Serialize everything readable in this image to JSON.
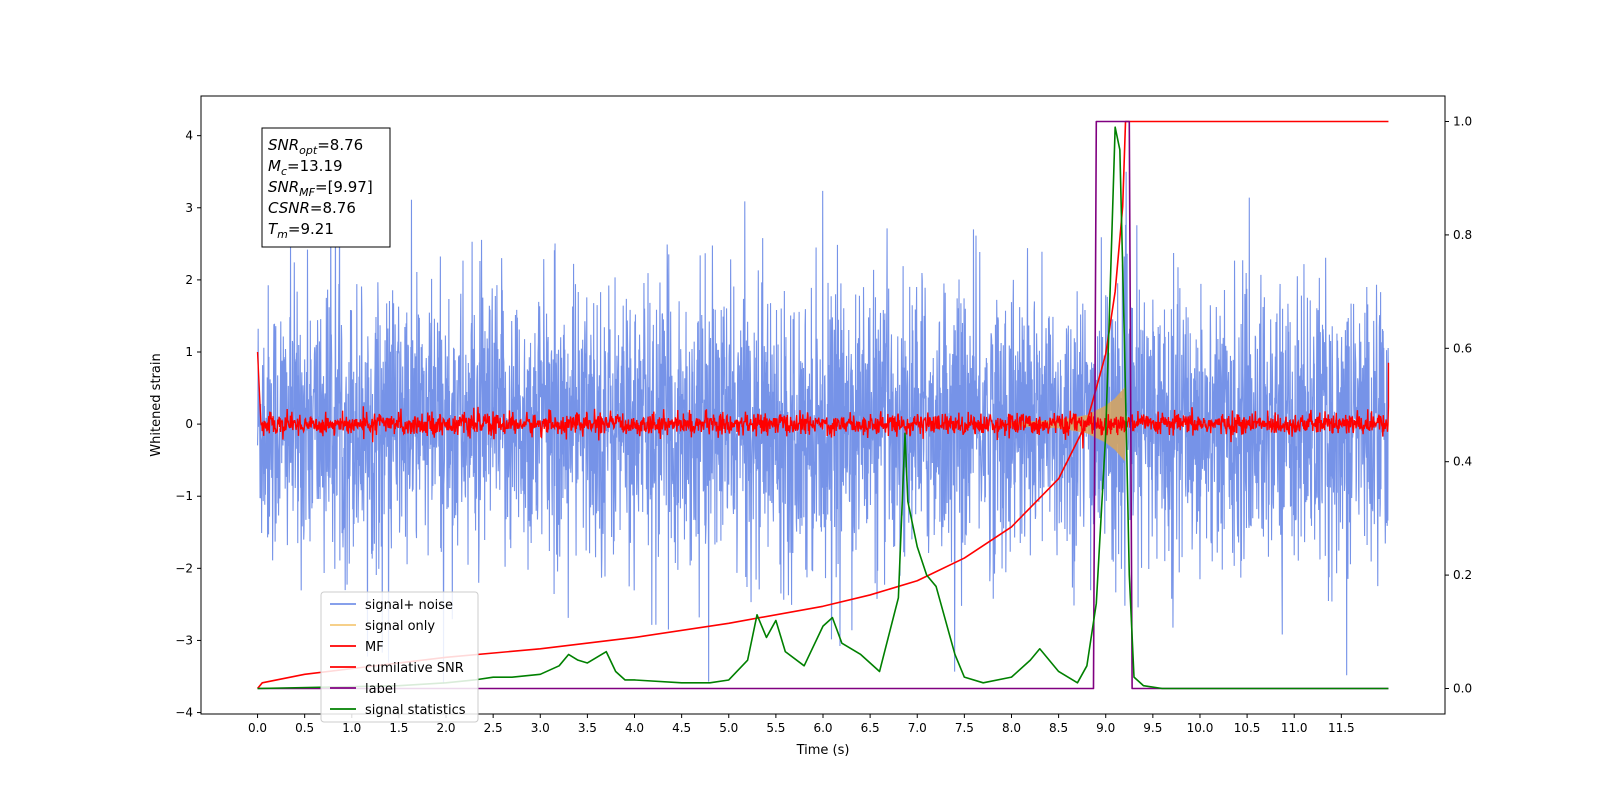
{
  "chart_data": {
    "type": "line",
    "xlabel": "Time (s)",
    "ylabel": "Whitened strain",
    "xlim": [
      -0.6,
      12.6
    ],
    "ylim": [
      -4.02,
      4.55
    ],
    "y2lim": [
      -0.045,
      1.045
    ],
    "x_ticks": [
      0.0,
      0.5,
      1.0,
      1.5,
      2.0,
      2.5,
      3.0,
      3.5,
      4.0,
      4.5,
      5.0,
      5.5,
      6.0,
      6.5,
      7.0,
      7.5,
      8.0,
      8.5,
      9.0,
      9.5,
      10.0,
      10.5,
      11.0,
      11.5
    ],
    "x_tick_labels": [
      "0.0",
      "0.5",
      "1.0",
      "1.5",
      "2.0",
      "2.5",
      "3.0",
      "3.5",
      "4.0",
      "4.5",
      "5.0",
      "5.5",
      "6.0",
      "6.5",
      "7.0",
      "7.5",
      "8.0",
      "8.5",
      "9.0",
      "9.5",
      "10.0",
      "10.5",
      "11.0",
      "11.5"
    ],
    "y_ticks": [
      -4,
      -3,
      -2,
      -1,
      0,
      1,
      2,
      3,
      4
    ],
    "y_tick_labels": [
      "−4",
      "−3",
      "−2",
      "−1",
      "0",
      "1",
      "2",
      "3",
      "4"
    ],
    "y2_ticks": [
      0.0,
      0.2,
      0.4,
      0.6,
      0.8,
      1.0
    ],
    "y2_tick_labels": [
      "0.0",
      "0.2",
      "0.4",
      "0.6",
      "0.8",
      "1.0"
    ],
    "stats_box": [
      {
        "base": "SNR",
        "sub": "opt",
        "text": "=8.76"
      },
      {
        "base": "M",
        "sub": "c",
        "text": "=13.19"
      },
      {
        "base": "SNR",
        "sub": "MF",
        "text": "=[9.97]"
      },
      {
        "base": "CSNR",
        "sub": "",
        "text": "=8.76"
      },
      {
        "base": "T",
        "sub": "m",
        "text": "=9.21"
      }
    ],
    "legend_position": "lower-left",
    "legend": [
      {
        "label": "signal+ noise",
        "color": "#7693e8"
      },
      {
        "label": "signal only",
        "color": "#f5c97a"
      },
      {
        "label": "MF",
        "color": "#ff0000"
      },
      {
        "label": "cumilative SNR",
        "color": "#ff0000"
      },
      {
        "label": "label",
        "color": "#800080"
      },
      {
        "label": "signal statistics",
        "color": "#008000"
      }
    ],
    "series": [
      {
        "name": "signal+ noise",
        "axis": "left",
        "color": "#7693e8",
        "description_range": [
          -3.6,
          3.5
        ],
        "x_range": [
          0.0,
          12.0
        ]
      },
      {
        "name": "signal only",
        "axis": "left",
        "color": "#d9a65c",
        "x": [
          8.0,
          8.5,
          8.8,
          9.0,
          9.1,
          9.2,
          9.21
        ],
        "amplitude": [
          0.02,
          0.05,
          0.12,
          0.25,
          0.35,
          0.5,
          0.0
        ]
      },
      {
        "name": "MF",
        "axis": "left",
        "color": "#ff0000",
        "x": [
          0.0,
          0.01,
          0.03,
          12.0,
          12.01
        ],
        "description_band": [
          -0.15,
          0.15
        ],
        "endpoints": [
          [
            0.0,
            1.0
          ],
          [
            0.03,
            -0.05
          ],
          [
            12.0,
            0.85
          ]
        ]
      },
      {
        "name": "cumilative SNR",
        "axis": "right",
        "color": "#ff0000",
        "x": [
          0.0,
          0.05,
          0.5,
          1.0,
          2.0,
          3.0,
          4.0,
          5.0,
          6.0,
          6.5,
          7.0,
          7.5,
          8.0,
          8.5,
          8.8,
          9.0,
          9.1,
          9.18,
          9.21,
          9.3,
          12.0
        ],
        "y": [
          0.0,
          0.01,
          0.025,
          0.035,
          0.055,
          0.07,
          0.09,
          0.115,
          0.145,
          0.165,
          0.19,
          0.23,
          0.285,
          0.37,
          0.47,
          0.59,
          0.7,
          0.85,
          1.0,
          1.0,
          1.0
        ]
      },
      {
        "name": "label",
        "axis": "right",
        "color": "#800080",
        "x": [
          0.0,
          8.87,
          8.9,
          9.25,
          9.28,
          12.0
        ],
        "y": [
          0.0,
          0.0,
          1.0,
          1.0,
          0.0,
          0.0
        ]
      },
      {
        "name": "signal statistics",
        "axis": "right",
        "color": "#008000",
        "x": [
          0.0,
          1.5,
          2.0,
          2.3,
          2.5,
          2.7,
          3.0,
          3.2,
          3.3,
          3.4,
          3.5,
          3.6,
          3.7,
          3.8,
          3.9,
          4.0,
          4.5,
          4.8,
          5.0,
          5.2,
          5.3,
          5.4,
          5.5,
          5.6,
          5.8,
          6.0,
          6.1,
          6.2,
          6.4,
          6.6,
          6.8,
          6.87,
          6.9,
          7.0,
          7.1,
          7.2,
          7.3,
          7.4,
          7.5,
          7.7,
          8.0,
          8.2,
          8.3,
          8.5,
          8.7,
          8.8,
          8.9,
          9.0,
          9.1,
          9.15,
          9.2,
          9.25,
          9.3,
          9.4,
          9.6,
          12.0
        ],
        "y": [
          0.0,
          0.005,
          0.01,
          0.015,
          0.02,
          0.02,
          0.025,
          0.04,
          0.06,
          0.05,
          0.045,
          0.055,
          0.065,
          0.03,
          0.015,
          0.015,
          0.01,
          0.01,
          0.015,
          0.05,
          0.13,
          0.09,
          0.12,
          0.065,
          0.04,
          0.11,
          0.125,
          0.08,
          0.06,
          0.03,
          0.16,
          0.45,
          0.33,
          0.25,
          0.2,
          0.18,
          0.12,
          0.06,
          0.02,
          0.01,
          0.02,
          0.05,
          0.07,
          0.03,
          0.01,
          0.04,
          0.15,
          0.45,
          0.99,
          0.95,
          0.6,
          0.2,
          0.02,
          0.005,
          0.0,
          0.0
        ]
      }
    ]
  }
}
